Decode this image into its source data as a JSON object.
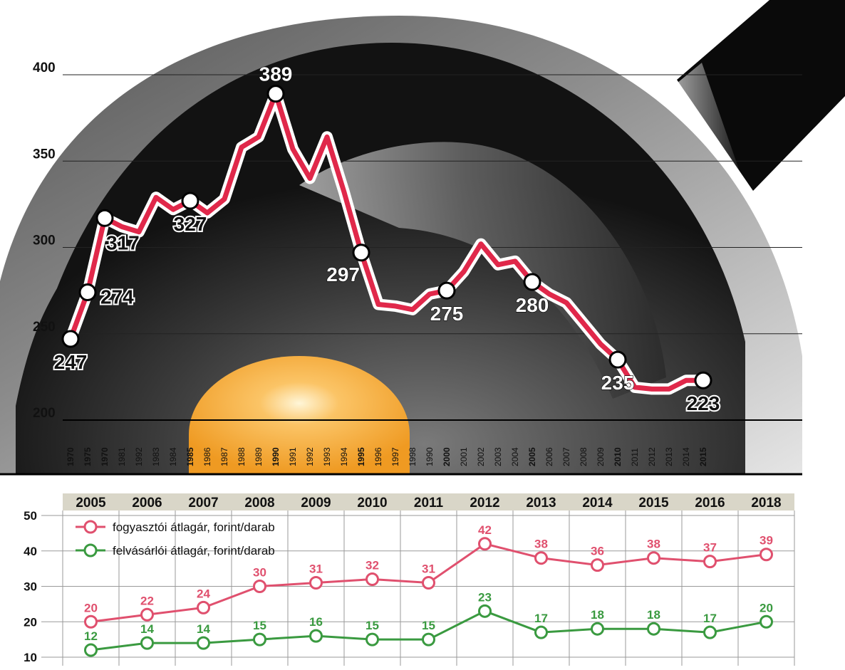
{
  "chart_data": [
    {
      "type": "line",
      "title": "",
      "xlabel": "",
      "ylabel": "",
      "ylim": [
        200,
        400
      ],
      "yticks": [
        200,
        250,
        300,
        350,
        400
      ],
      "grid": true,
      "categories": [
        "1970",
        "1975",
        "1970",
        "1981",
        "1992",
        "1983",
        "1984",
        "1985",
        "1986",
        "1987",
        "1988",
        "1989",
        "1990",
        "1991",
        "1992",
        "1993",
        "1994",
        "1995",
        "1996",
        "1997",
        "1998",
        "1990",
        "2000",
        "2001",
        "2002",
        "2003",
        "2004",
        "2005",
        "2006",
        "2007",
        "2008",
        "2009",
        "2010",
        "2011",
        "2012",
        "2013",
        "2014",
        "2015"
      ],
      "bold_categories_index": [
        0,
        1,
        2,
        7,
        12,
        17,
        22,
        27,
        32,
        37
      ],
      "series": [
        {
          "color": "#e0284a",
          "values": [
            247,
            274,
            317,
            312,
            309,
            329,
            322,
            327,
            320,
            328,
            358,
            364,
            389,
            357,
            340,
            364,
            332,
            297,
            267,
            266,
            264,
            273,
            275,
            286,
            302,
            290,
            292,
            280,
            273,
            268,
            256,
            244,
            235,
            219,
            218,
            218,
            223,
            223
          ]
        }
      ],
      "point_labels": [
        {
          "index": 0,
          "label": "247",
          "style": "dark",
          "pos": "below"
        },
        {
          "index": 1,
          "label": "274",
          "style": "dark",
          "pos": "right"
        },
        {
          "index": 2,
          "label": "317",
          "style": "dark",
          "pos": "below-right"
        },
        {
          "index": 7,
          "label": "327",
          "style": "dark",
          "pos": "below"
        },
        {
          "index": 12,
          "label": "389",
          "style": "white",
          "pos": "above"
        },
        {
          "index": 17,
          "label": "297",
          "style": "white",
          "pos": "below-left"
        },
        {
          "index": 22,
          "label": "275",
          "style": "white",
          "pos": "below"
        },
        {
          "index": 27,
          "label": "280",
          "style": "white",
          "pos": "below"
        },
        {
          "index": 32,
          "label": "235",
          "style": "white",
          "pos": "below"
        },
        {
          "index": 37,
          "label": "223",
          "style": "dark",
          "pos": "below"
        }
      ]
    },
    {
      "type": "line",
      "title": "",
      "xlabel": "",
      "ylabel": "",
      "ylim": [
        10,
        50
      ],
      "yticks": [
        10,
        20,
        30,
        40,
        50
      ],
      "grid": true,
      "legend_position": "top-left",
      "categories": [
        "2005",
        "2006",
        "2007",
        "2008",
        "2009",
        "2010",
        "2011",
        "2012",
        "2013",
        "2014",
        "2015",
        "2016",
        "2018"
      ],
      "series": [
        {
          "name": "fogyasztói átlagár, forint/darab",
          "color": "#e0506e",
          "values": [
            20,
            22,
            24,
            30,
            31,
            32,
            31,
            42,
            38,
            36,
            38,
            37,
            39
          ],
          "labels": [
            "20",
            "22",
            "24",
            "30",
            "31",
            "32",
            "31",
            "42",
            "38",
            "36",
            "38",
            "37",
            "39"
          ]
        },
        {
          "name": "felvásárlói átlagár, forint/darab",
          "color": "#3a9a40",
          "values": [
            12,
            14,
            14,
            15,
            16,
            15,
            15,
            23,
            17,
            18,
            18,
            17,
            20
          ],
          "labels": [
            "12",
            "14",
            "14",
            "15",
            "16",
            "15",
            "15",
            "23",
            "17",
            "18",
            "18",
            "17",
            "20"
          ]
        }
      ]
    }
  ]
}
